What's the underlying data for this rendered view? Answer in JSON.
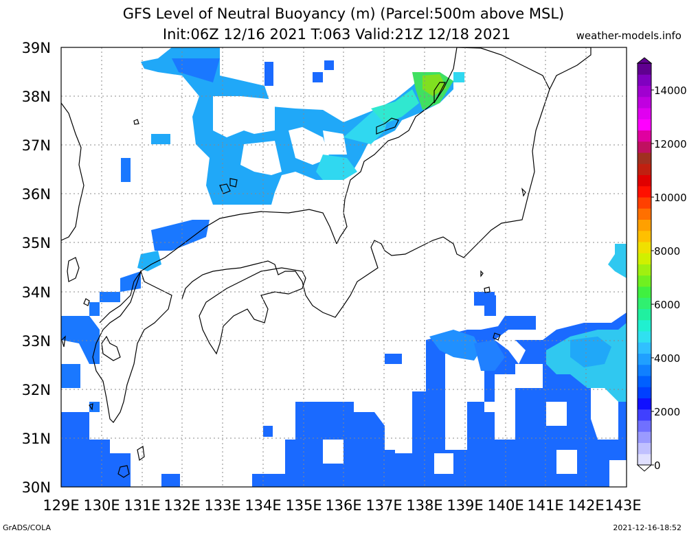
{
  "header": {
    "title_line1": "GFS Level of Neutral Buoyancy (m) (Parcel:500m above MSL)",
    "title_line2": "Init:06Z 12/16 2021 T:063 Valid:21Z 12/18 2021",
    "site": "weather-models.info"
  },
  "footer": {
    "left": "GrADS/COLA",
    "right": "2021-12-16-18:52"
  },
  "map": {
    "lat_labels": [
      "39N",
      "38N",
      "37N",
      "36N",
      "35N",
      "34N",
      "33N",
      "32N",
      "31N",
      "30N"
    ],
    "lon_labels": [
      "129E",
      "130E",
      "131E",
      "132E",
      "133E",
      "134E",
      "135E",
      "136E",
      "137E",
      "138E",
      "139E",
      "140E",
      "141E",
      "142E",
      "143E"
    ]
  },
  "colorbar": {
    "labels": [
      "14000",
      "12000",
      "10000",
      "8000",
      "6000",
      "4000",
      "2000",
      "0"
    ],
    "colors": [
      "#e0e0ff",
      "#c0c0ff",
      "#9a9aff",
      "#7070ff",
      "#4040ff",
      "#1010ff",
      "#0040ff",
      "#0060ff",
      "#1080ff",
      "#20a0ff",
      "#30c0ff",
      "#30e0f0",
      "#20f0d0",
      "#20f0a0",
      "#30f070",
      "#40f040",
      "#70f020",
      "#a0f010",
      "#d0f000",
      "#f0e000",
      "#ffc000",
      "#ffa000",
      "#ff7000",
      "#ff4000",
      "#ff1000",
      "#e00000",
      "#c02010",
      "#a03020",
      "#c01060",
      "#e000a0",
      "#ff00ff",
      "#e000f0",
      "#c000e0",
      "#a000d0",
      "#8000c0",
      "#600090"
    ]
  }
}
